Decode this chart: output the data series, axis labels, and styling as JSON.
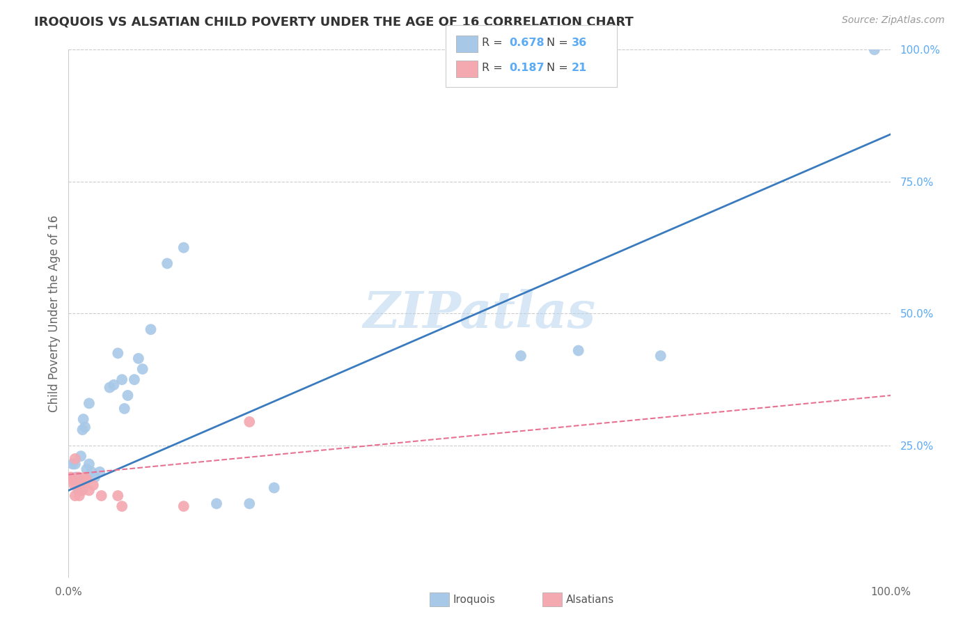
{
  "title": "IROQUOIS VS ALSATIAN CHILD POVERTY UNDER THE AGE OF 16 CORRELATION CHART",
  "source": "Source: ZipAtlas.com",
  "ylabel": "Child Poverty Under the Age of 16",
  "R_iroquois": 0.678,
  "N_iroquois": 36,
  "R_alsatian": 0.187,
  "N_alsatian": 21,
  "watermark": "ZIPatlas",
  "iroquois_color": "#a8c8e8",
  "alsatian_color": "#f4a8b0",
  "iroquois_line_color": "#3a7bbf",
  "alsatian_line_color": "#e87090",
  "xlim": [
    0,
    1.0
  ],
  "ylim": [
    0,
    1.0
  ],
  "ytick_values": [
    0.25,
    0.5,
    0.75,
    1.0
  ],
  "ytick_labels": [
    "25.0%",
    "50.0%",
    "75.0%",
    "100.0%"
  ],
  "xtick_values": [
    0.0,
    1.0
  ],
  "xtick_labels": [
    "0.0%",
    "100.0%"
  ],
  "grid_color": "#cccccc",
  "background_color": "#ffffff",
  "title_color": "#333333",
  "axis_label_color": "#666666",
  "right_tick_color": "#5baaf5",
  "iroquois_x": [
    0.005,
    0.008,
    0.009,
    0.01,
    0.012,
    0.013,
    0.015,
    0.017,
    0.018,
    0.02,
    0.022,
    0.025,
    0.025,
    0.028,
    0.032,
    0.038,
    0.05,
    0.055,
    0.06,
    0.065,
    0.068,
    0.072,
    0.08,
    0.085,
    0.09,
    0.1,
    0.12,
    0.14,
    0.18,
    0.22,
    0.25,
    0.55,
    0.62,
    0.72,
    0.98,
    0.015
  ],
  "iroquois_y": [
    0.215,
    0.215,
    0.19,
    0.185,
    0.165,
    0.185,
    0.23,
    0.28,
    0.3,
    0.285,
    0.205,
    0.33,
    0.215,
    0.2,
    0.19,
    0.2,
    0.36,
    0.365,
    0.425,
    0.375,
    0.32,
    0.345,
    0.375,
    0.415,
    0.395,
    0.47,
    0.595,
    0.625,
    0.14,
    0.14,
    0.17,
    0.42,
    0.43,
    0.42,
    1.0,
    0.175
  ],
  "alsatian_x": [
    0.003,
    0.005,
    0.007,
    0.008,
    0.009,
    0.01,
    0.012,
    0.013,
    0.015,
    0.017,
    0.018,
    0.02,
    0.022,
    0.025,
    0.03,
    0.04,
    0.06,
    0.065,
    0.14,
    0.22,
    0.008
  ],
  "alsatian_y": [
    0.19,
    0.185,
    0.175,
    0.155,
    0.18,
    0.175,
    0.19,
    0.155,
    0.175,
    0.165,
    0.175,
    0.19,
    0.185,
    0.165,
    0.175,
    0.155,
    0.155,
    0.135,
    0.135,
    0.295,
    0.225
  ],
  "iroquois_line_x": [
    0.0,
    1.0
  ],
  "iroquois_line_y": [
    0.165,
    0.84
  ],
  "alsatian_line_x": [
    0.0,
    1.0
  ],
  "alsatian_line_y": [
    0.195,
    0.345
  ]
}
